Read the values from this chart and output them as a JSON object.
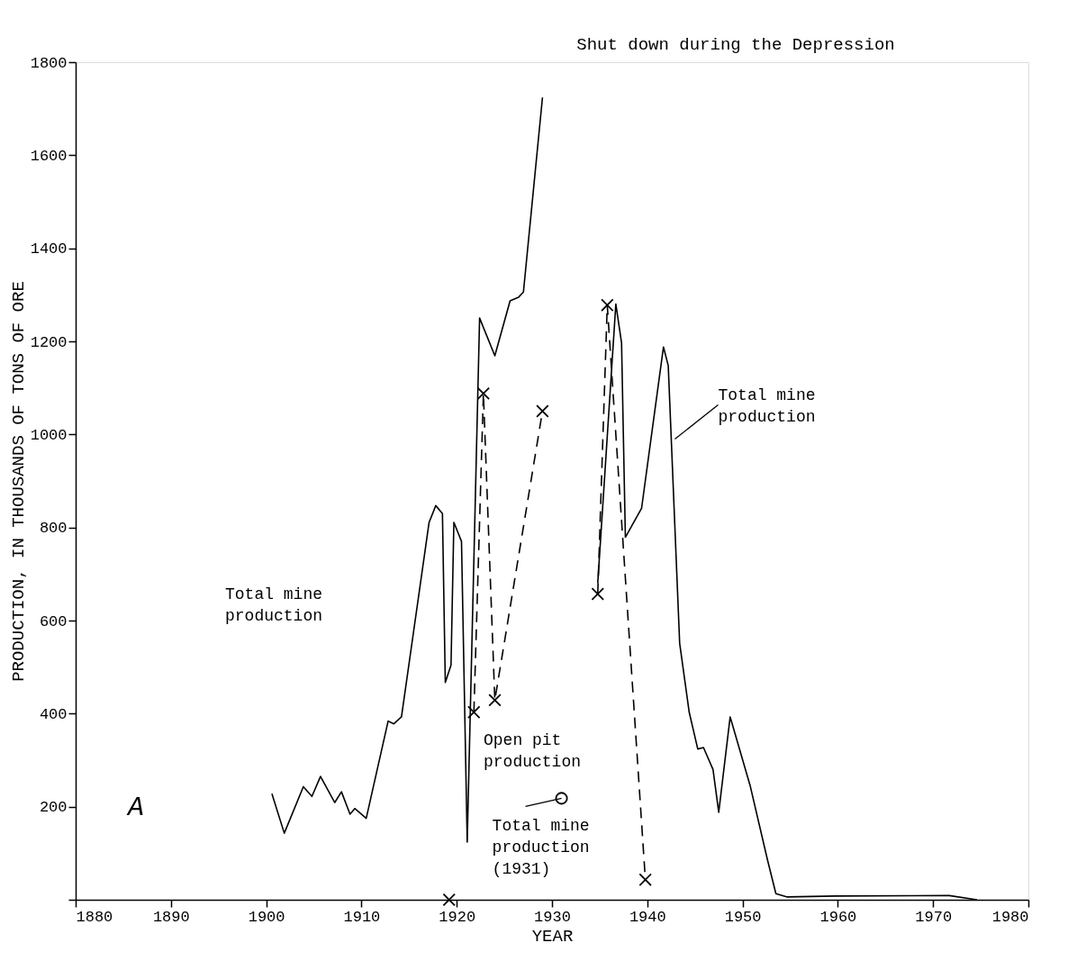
{
  "chart_data": {
    "type": "line",
    "xlabel": "YEAR",
    "ylabel": "PRODUCTION, IN THOUSANDS OF TONS OF ORE",
    "xlim": [
      1880,
      1980
    ],
    "xticks": [
      1880,
      1890,
      1900,
      1910,
      1920,
      1930,
      1940,
      1950,
      1960,
      1970,
      1980
    ],
    "ylim": [
      0,
      1800
    ],
    "yticks": [
      {
        "value": 0,
        "label": null
      },
      200,
      400,
      600,
      800,
      1000,
      1200,
      1400,
      1600,
      1800
    ],
    "grid": false,
    "annotations": [
      "Shut down during the Depression",
      "A",
      "Total mine production",
      "Open pit production",
      {
        "text": "Total mine production (1931)",
        "x": 1931,
        "y": 218
      },
      {
        "text": "Total mine production",
        "x": 1942.9,
        "y": 990
      }
    ],
    "series": [
      {
        "color": "#000000",
        "line_style": "solid",
        "marker": "none",
        "x": [
          1900.6,
          1901.9,
          1903.9,
          1904.8,
          1905.7,
          1907.2,
          1907.9,
          1908.8,
          1909.3,
          1910.5,
          1912.8,
          1913.4,
          1914.2,
          1917.1,
          1917.8,
          1918.5,
          1918.8,
          1919.4,
          1919.7,
          1920.5,
          1921.1,
          1922.4,
          1924.0,
          1925.6,
          1926.5,
          1927.0,
          1929.0,
          1932.0,
          1934.8,
          1936.7,
          1937.3,
          1937.7,
          1939.4,
          1941.7,
          1942.2,
          1943.4,
          1944.4,
          1945.3,
          1945.9,
          1946.9,
          1947.5,
          1948.7,
          1950.8,
          1952.6,
          1953.5,
          1954.7,
          1959.7,
          1971.7,
          1974.6
        ],
        "values": [
          228,
          143,
          243,
          222,
          265,
          209,
          232,
          184,
          196,
          175,
          384,
          378,
          393,
          811,
          847,
          830,
          467,
          504,
          811,
          770,
          124,
          1250,
          1169,
          1287,
          1295,
          1306,
          1724,
          null,
          680,
          1280,
          1197,
          779,
          841,
          1188,
          1148,
          551,
          403,
          324,
          327,
          280,
          188,
          393,
          245,
          87,
          13,
          6,
          8,
          9,
          0
        ]
      },
      {
        "color": "#000000",
        "line_style": "dashed",
        "marker": "cross",
        "x": [
          1919.2,
          1920.5,
          1921.8,
          1922.8,
          1924.0,
          1929.0,
          1932.0,
          1934.8,
          1935.8,
          1939.8
        ],
        "values": [
          0,
          null,
          403,
          1088,
          429,
          1050,
          null,
          657,
          1278,
          43
        ]
      },
      {
        "type": "scatter",
        "color": "#000000",
        "marker": "circle",
        "x": [
          1931
        ],
        "values": [
          218
        ]
      }
    ]
  }
}
